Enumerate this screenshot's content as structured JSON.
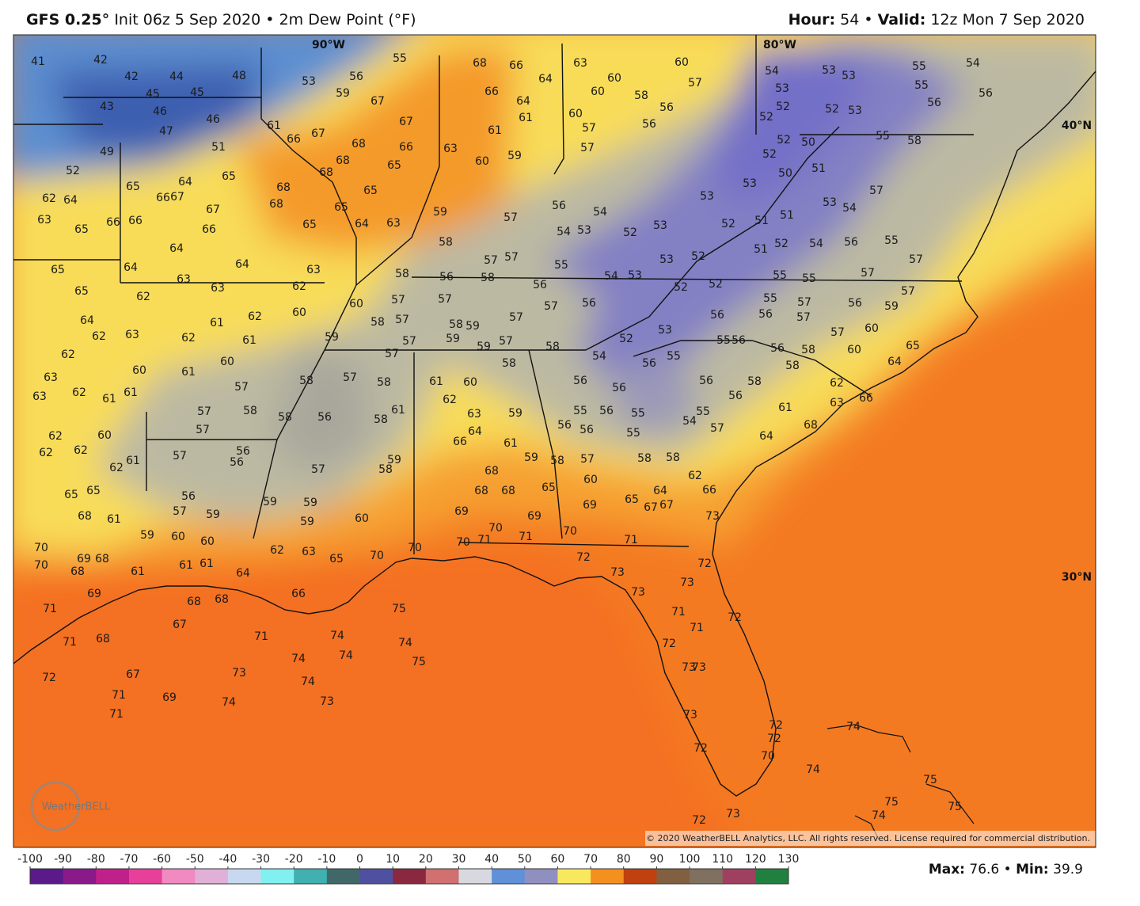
{
  "header": {
    "model": "GFS 0.25°",
    "init": "Init 06z 5 Sep 2020",
    "separator": "•",
    "field": "2m Dew Point (°F)",
    "hour_label": "Hour:",
    "hour": 54,
    "valid_label": "Valid:",
    "valid": "12z Mon 7 Sep 2020"
  },
  "map": {
    "lon_labels": [
      "90°W",
      "80°W"
    ],
    "lat_labels": [
      "40°N",
      "30°N"
    ],
    "station_values": [
      [
        41,
        42,
        55,
        68,
        66,
        64,
        63,
        60,
        60,
        57,
        54,
        55
      ],
      [
        42,
        44,
        48,
        53,
        56,
        59,
        67,
        66,
        64,
        61,
        60,
        58,
        56,
        54,
        53,
        53,
        53,
        55,
        56,
        56
      ],
      [
        43,
        45,
        45,
        46,
        46,
        47,
        51,
        49,
        52
      ],
      [
        61,
        66,
        67,
        68,
        67,
        66,
        65,
        61,
        60,
        57,
        57,
        59,
        60,
        63,
        56
      ],
      [
        52,
        52,
        52,
        53,
        52,
        50,
        55,
        58
      ],
      [
        62,
        64,
        65,
        64,
        65,
        66,
        67,
        67,
        68,
        68,
        68,
        68,
        65,
        65,
        64,
        63,
        65,
        66,
        63,
        65,
        66,
        66
      ],
      [
        59,
        57,
        56,
        54,
        54,
        53,
        52,
        53,
        53,
        53,
        52,
        50,
        51,
        53,
        54,
        57,
        52,
        51,
        51,
        51,
        52,
        54,
        56,
        55,
        57
      ],
      [
        65,
        64,
        63,
        64,
        64,
        63,
        58,
        57,
        57,
        55,
        53,
        52
      ],
      [
        65,
        62,
        63,
        62,
        60,
        57,
        57,
        56,
        58,
        58,
        56,
        57,
        56,
        54,
        53,
        52,
        52,
        55,
        55,
        57,
        55,
        57,
        56,
        57,
        56,
        59,
        57
      ],
      [
        64,
        62,
        63,
        61,
        62,
        60,
        58,
        57,
        58,
        59,
        57,
        56,
        53,
        52,
        55,
        56,
        56,
        57,
        60
      ],
      [
        62,
        62,
        61,
        59,
        57,
        59,
        59,
        57,
        58,
        54,
        58,
        60,
        65
      ],
      [
        63,
        60,
        61,
        60,
        57,
        58,
        56,
        55,
        56,
        58,
        56,
        58,
        62,
        64
      ],
      [
        63,
        62,
        61,
        61,
        57,
        58,
        57,
        58,
        61,
        60,
        56,
        56
      ],
      [
        57,
        58,
        58,
        56,
        58,
        61,
        62,
        63,
        59,
        55,
        56,
        55,
        55,
        54,
        57,
        61,
        63,
        66
      ],
      [
        57,
        62,
        60,
        64,
        66,
        61,
        56,
        56,
        55
      ],
      [
        62,
        62,
        61,
        62,
        57,
        56,
        56,
        59,
        58,
        57,
        58,
        58,
        64,
        68
      ],
      [
        65,
        65,
        56,
        57,
        59,
        57,
        59,
        58,
        68,
        68,
        68,
        60,
        62,
        66,
        64,
        67,
        67,
        65,
        69,
        65,
        69,
        69,
        73
      ],
      [
        68,
        61,
        59,
        60,
        60,
        59,
        59,
        59,
        60,
        70,
        70,
        69,
        68,
        68,
        61,
        61,
        61,
        64,
        62,
        63,
        65,
        70,
        70,
        70,
        71,
        70,
        71,
        70,
        71,
        72,
        72
      ],
      [
        69,
        68,
        68,
        66,
        71,
        67,
        71,
        68,
        71,
        74,
        75,
        74,
        74,
        74,
        75,
        73,
        73,
        73,
        71,
        71,
        72,
        72,
        73,
        73,
        72,
        67,
        73,
        74,
        71,
        69,
        74,
        73,
        71
      ],
      [
        72,
        72,
        70,
        74,
        74,
        72,
        73,
        75,
        75,
        75,
        74,
        73,
        72
      ]
    ],
    "copyright": "© 2020 WeatherBELL Analytics, LLC. All rights reserved. License required for commercial distribution.",
    "logo": "WeatherBELL"
  },
  "colorbar": {
    "ticks": [
      -100,
      -90,
      -80,
      -70,
      -60,
      -50,
      -40,
      -30,
      -20,
      -10,
      0,
      10,
      20,
      30,
      40,
      50,
      60,
      70,
      80,
      90,
      100,
      110,
      120,
      130
    ],
    "colors": [
      "#5a1a8a",
      "#8a1a8a",
      "#c0208a",
      "#e8409a",
      "#f08ac0",
      "#e0b0d8",
      "#c8d8f0",
      "#80f0f0",
      "#40b0b0",
      "#406868",
      "#5050a0",
      "#8a2840",
      "#d07070",
      "#d8d8e0",
      "#6090d8",
      "#9090c0",
      "#f8e860",
      "#f49020",
      "#c04010",
      "#806040",
      "#807060",
      "#a04060",
      "#208040"
    ]
  },
  "stats": {
    "max_label": "Max:",
    "max": 76.6,
    "separator": "•",
    "min_label": "Min:",
    "min": 39.9
  }
}
